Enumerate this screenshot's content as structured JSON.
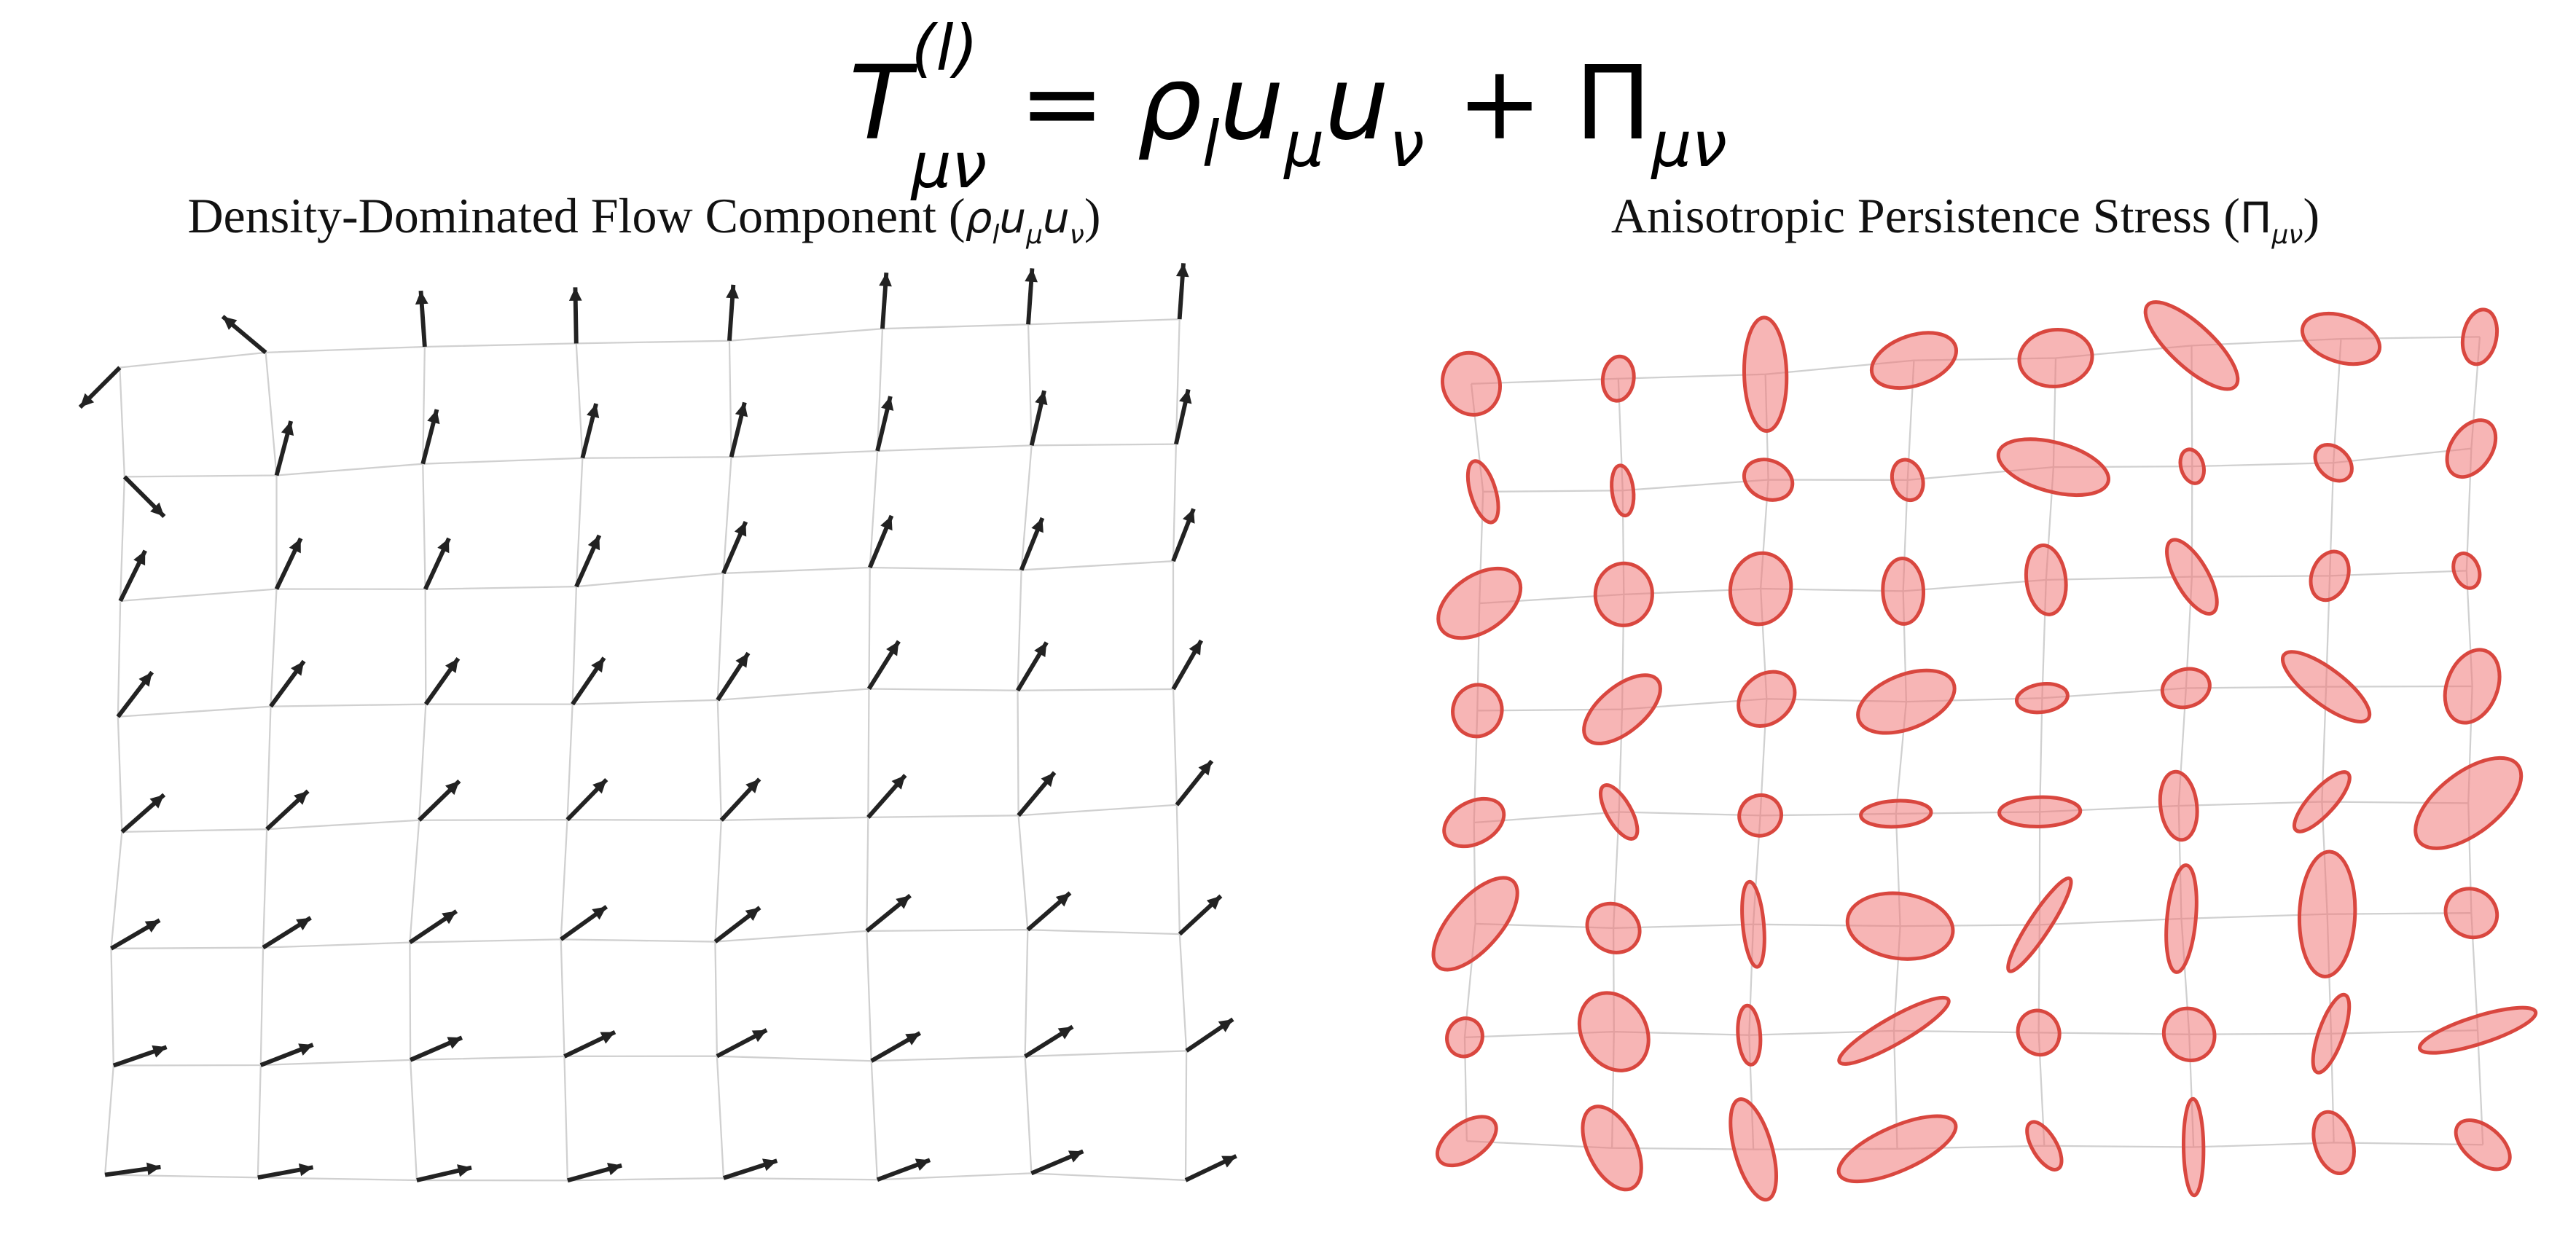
{
  "equation": {
    "parts": [
      {
        "base": "T",
        "sup": "(l)",
        "sub": "μν"
      },
      {
        "text": " = "
      },
      {
        "base": "ρ",
        "sub": "l"
      },
      {
        "base": "u",
        "sub": "μ"
      },
      {
        "base": "u",
        "sub": "ν"
      },
      {
        "text": " + "
      },
      {
        "base": "Π",
        "sub": "μν"
      }
    ]
  },
  "panels": [
    {
      "title": {
        "text": "Density-Dominated Flow Component (",
        "math": [
          {
            "base": "ρ",
            "sub": "l"
          },
          {
            "base": "u",
            "sub": "μ"
          },
          {
            "base": "u",
            "sub": "ν"
          }
        ],
        "close": ")"
      }
    },
    {
      "title": {
        "text": "Anisotropic Persistence Stress (",
        "math": [
          {
            "base": "Π",
            "sub": "μν"
          }
        ],
        "close": ")"
      }
    }
  ]
}
